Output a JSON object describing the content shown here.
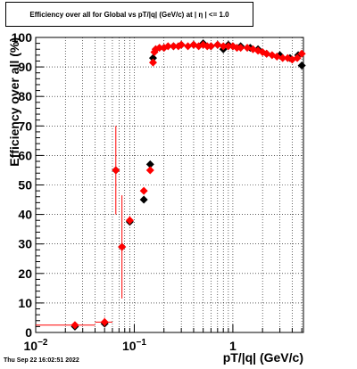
{
  "title": "Efficiency over all for Global vs pT/|q| (GeV/c) at |  η  | <= 1.0",
  "timestamp": "Thu Sep 22 16:02:51 2022",
  "chart_data": {
    "type": "scatter",
    "xlabel": "pT/|q| (GeV/c)",
    "ylabel": "Efficiency over all (%)",
    "xscale": "log",
    "xlim": [
      0.01,
      5.2
    ],
    "ylim": [
      0,
      100
    ],
    "y_ticks": [
      "0",
      "10",
      "20",
      "30",
      "40",
      "50",
      "60",
      "70",
      "80",
      "90",
      "100"
    ],
    "x_tick_labels": [
      {
        "value": 0.01,
        "base": "10",
        "exp": "−2"
      },
      {
        "value": 0.1,
        "base": "10",
        "exp": "−1"
      },
      {
        "value": 1,
        "base": "1",
        "exp": ""
      }
    ],
    "grid": true,
    "series": [
      {
        "color": "#000000",
        "marker": "diamond",
        "points": [
          {
            "x": 0.025,
            "y": 2.0
          },
          {
            "x": 0.05,
            "y": 3.0
          },
          {
            "x": 0.065,
            "y": 55.0
          },
          {
            "x": 0.075,
            "y": 29.0
          },
          {
            "x": 0.09,
            "y": 37.5
          },
          {
            "x": 0.125,
            "y": 45.0
          },
          {
            "x": 0.145,
            "y": 57.0
          },
          {
            "x": 0.155,
            "y": 93.0
          },
          {
            "x": 0.165,
            "y": 96.0
          },
          {
            "x": 0.2,
            "y": 96.5
          },
          {
            "x": 0.25,
            "y": 97.0
          },
          {
            "x": 0.3,
            "y": 97.5
          },
          {
            "x": 0.4,
            "y": 97.5
          },
          {
            "x": 0.5,
            "y": 98.0
          },
          {
            "x": 0.6,
            "y": 97.0
          },
          {
            "x": 0.7,
            "y": 97.5
          },
          {
            "x": 0.8,
            "y": 96.0
          },
          {
            "x": 0.9,
            "y": 97.5
          },
          {
            "x": 1.0,
            "y": 97.0
          },
          {
            "x": 1.2,
            "y": 97.0
          },
          {
            "x": 1.5,
            "y": 96.5
          },
          {
            "x": 1.8,
            "y": 96.0
          },
          {
            "x": 2.2,
            "y": 94.5
          },
          {
            "x": 3.0,
            "y": 94.0
          },
          {
            "x": 3.8,
            "y": 93.0
          },
          {
            "x": 4.6,
            "y": 94.0
          },
          {
            "x": 5.0,
            "y": 90.5
          }
        ]
      },
      {
        "color": "#ff0000",
        "marker": "diamond",
        "points": [
          {
            "x": 0.025,
            "y": 2.5,
            "xerr": [
              0.01,
              0.04
            ],
            "yerr": 0.5
          },
          {
            "x": 0.05,
            "y": 3.5,
            "xerr": [
              0.04,
              0.06
            ],
            "yerr": 1.5
          },
          {
            "x": 0.065,
            "y": 55.0,
            "yerr": 15.0
          },
          {
            "x": 0.075,
            "y": 29.0,
            "yerr": 17.5
          },
          {
            "x": 0.09,
            "y": 38.0,
            "yerr": 1.5
          },
          {
            "x": 0.125,
            "y": 48.0,
            "yerr": 1.0
          },
          {
            "x": 0.145,
            "y": 55.0,
            "yerr": 1.0
          },
          {
            "x": 0.155,
            "y": 91.5
          },
          {
            "x": 0.16,
            "y": 95.0
          },
          {
            "x": 0.165,
            "y": 96.0
          },
          {
            "x": 0.18,
            "y": 96.5
          },
          {
            "x": 0.2,
            "y": 96.5
          },
          {
            "x": 0.22,
            "y": 97.0
          },
          {
            "x": 0.25,
            "y": 97.0
          },
          {
            "x": 0.28,
            "y": 97.0
          },
          {
            "x": 0.3,
            "y": 97.5
          },
          {
            "x": 0.35,
            "y": 97.0
          },
          {
            "x": 0.4,
            "y": 97.5
          },
          {
            "x": 0.45,
            "y": 97.0
          },
          {
            "x": 0.5,
            "y": 97.5
          },
          {
            "x": 0.55,
            "y": 97.0
          },
          {
            "x": 0.6,
            "y": 97.0
          },
          {
            "x": 0.7,
            "y": 97.5
          },
          {
            "x": 0.8,
            "y": 97.0
          },
          {
            "x": 0.9,
            "y": 97.0
          },
          {
            "x": 1.0,
            "y": 97.0
          },
          {
            "x": 1.1,
            "y": 96.5
          },
          {
            "x": 1.2,
            "y": 96.5
          },
          {
            "x": 1.4,
            "y": 96.5
          },
          {
            "x": 1.6,
            "y": 96.0
          },
          {
            "x": 1.8,
            "y": 95.5
          },
          {
            "x": 2.0,
            "y": 95.0
          },
          {
            "x": 2.2,
            "y": 94.5
          },
          {
            "x": 2.5,
            "y": 94.0
          },
          {
            "x": 2.8,
            "y": 93.5
          },
          {
            "x": 3.2,
            "y": 93.0
          },
          {
            "x": 3.6,
            "y": 93.0
          },
          {
            "x": 4.0,
            "y": 92.5
          },
          {
            "x": 4.5,
            "y": 93.0
          },
          {
            "x": 5.0,
            "y": 94.5
          }
        ]
      }
    ]
  }
}
